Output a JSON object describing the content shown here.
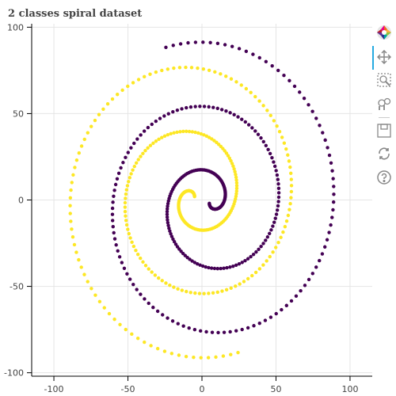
{
  "chart_data": {
    "type": "scatter",
    "title": "2 classes spiral dataset",
    "xlabel": "",
    "ylabel": "",
    "xlim": [
      -115,
      115
    ],
    "ylim": [
      -102,
      102
    ],
    "x_ticks": [
      -100,
      -50,
      0,
      50,
      100
    ],
    "y_ticks": [
      -100,
      -50,
      0,
      50,
      100
    ],
    "grid": true,
    "legend": "none",
    "series": [
      {
        "color": "#440154",
        "spiral": {
          "center": [
            5,
            -2
          ],
          "r_start": 0,
          "r_end": 95,
          "theta_end_deg": 918,
          "points": 300,
          "direction": "counterclockwise_from_center"
        }
      },
      {
        "color": "#fde725",
        "spiral": {
          "center": [
            -5,
            2
          ],
          "r_start": 0,
          "r_end": 95,
          "theta_end_deg": 918,
          "points": 300,
          "direction": "counterclockwise_from_center",
          "mirrored": true
        }
      }
    ]
  },
  "toolbar": {
    "tools": [
      {
        "icon": "bokeh-logo-icon",
        "active": false
      },
      {
        "icon": "pan-icon",
        "active": true
      },
      {
        "icon": "box-zoom-icon",
        "active": false
      },
      {
        "icon": "wheel-zoom-icon",
        "active": false
      },
      {
        "icon": "save-icon",
        "active": false
      },
      {
        "icon": "reset-icon",
        "active": false
      },
      {
        "icon": "help-icon",
        "active": false
      }
    ]
  }
}
